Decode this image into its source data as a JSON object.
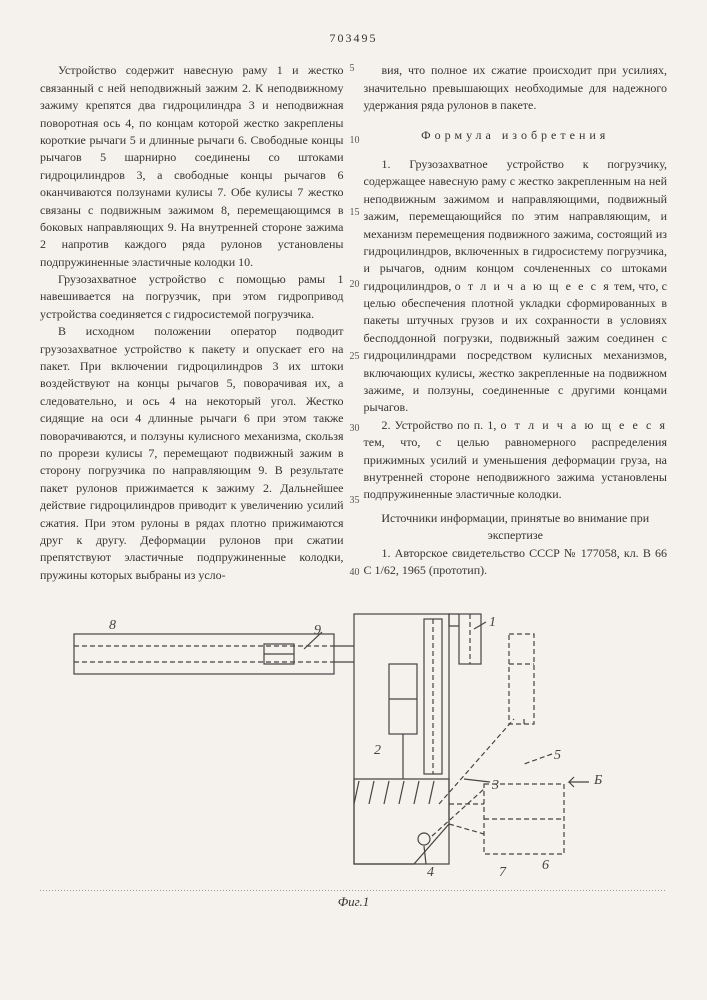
{
  "page_number": "703495",
  "left_col": {
    "p1": "Устройство содержит навесную раму 1 и жестко связанный с ней неподвижный зажим 2. К неподвижному зажиму крепятся два гидроцилиндра 3 и неподвижная поворотная ось 4, по концам которой жестко закреплены короткие рычаги 5 и длинные рычаги 6. Свободные концы рычагов 5 шарнирно соединены со штоками гидроцилиндров 3, а свободные концы рычагов 6 оканчиваются ползунами кулисы 7. Обе кулисы 7 жестко связаны с подвижным зажимом 8, перемещающимся в боковых направляющих 9. На внутренней стороне зажима 2 напротив каждого ряда рулонов установлены подпружиненные эластичные колодки 10.",
    "p2": "Грузозахватное устройство с помощью рамы 1 навешивается на погрузчик, при этом гидропривод устройства соединяется с гидросистемой погрузчика.",
    "p3": "В исходном положении оператор подводит грузозахватное устройство к пакету и опускает его на пакет. При включении гидроцилиндров 3 их штоки воздействуют на концы рычагов 5, поворачивая их, а следовательно, и ось 4 на некоторый угол. Жестко сидящие на оси 4 длинные рычаги 6 при этом также поворачиваются, и ползуны кулисного механизма, скользя по прорези кулисы 7, перемещают подвижный зажим в сторону погрузчика по направляющим 9. В результате пакет рулонов прижимается к зажиму 2. Дальнейшее действие гидроцилиндров приводит к увеличению усилий сжатия. При этом рулоны в рядах плотно прижимаются друг к другу. Деформации рулонов при сжатии препятствуют эластичные подпружиненные колодки, пружины которых выбраны из усло-"
  },
  "right_col": {
    "p1": "вия, что полное их сжатие происходит при усилиях, значительно превышающих необходимые для надежного удержания ряда рулонов в пакете.",
    "formula_header": "Формула изобретения",
    "claim1": "1. Грузозахватное устройство к погрузчику, содержащее навесную раму с жестко закрепленным на ней неподвижным зажимом и направляющими, подвижный зажим, перемещающийся по этим направляющим, и механизм перемещения подвижного зажима, состоящий из гидроцилиндров, включенных в гидросистему погрузчика, и рычагов, одним концом сочлененных со штоками гидроцилиндров, ",
    "claim1_em": "о т л и ч а ю щ е е с я",
    "claim1b": " тем, что, с целью обеспечения плотной укладки сформированных в пакеты штучных грузов и их сохранности в условиях бесподдонной погрузки, подвижный зажим соединен с гидроцилиндрами посредством кулисных механизмов, включающих кулисы, жестко закрепленные на подвижном зажиме, и ползуны, соединенные с другими концами рычагов.",
    "claim2a": "2. Устройство по п. 1, ",
    "claim2_em": "о т л и ч а ю щ е е с я",
    "claim2b": " тем, что, с целью равномерного распределения прижимных усилий и уменьшения деформации груза, на внутренней стороне неподвижного зажима установлены подпружиненные эластичные колодки.",
    "sources_header": "Источники информации, принятые во внимание при экспертизе",
    "source1": "1. Авторское свидетельство СССР № 177058, кл. В 66 С 1/62, 1965 (прототип)."
  },
  "line_numbers_left": [
    "5",
    "10",
    "15",
    "20",
    "25",
    "30",
    "35",
    "40"
  ],
  "figure": {
    "label": "Фиг.1",
    "callouts": [
      "8",
      "9",
      "1",
      "2",
      "3",
      "4",
      "5",
      "6",
      "7",
      "Б"
    ],
    "stroke_color": "#444444",
    "stroke_width": 1.2,
    "dash": "5,3"
  }
}
